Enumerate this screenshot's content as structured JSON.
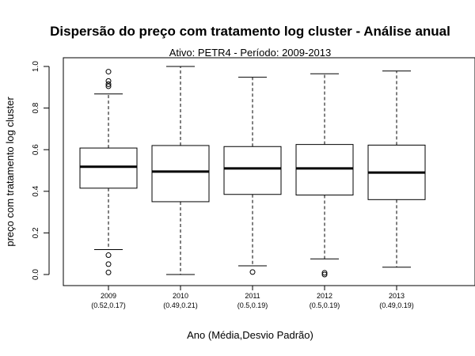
{
  "chart_data": {
    "type": "boxplot",
    "title": "Dispersão do  preço com tratamento log cluster  - Análise anual",
    "subtitle": "Ativo: PETR4 - Período: 2009-2013",
    "xlabel": "Ano (Média,Desvio Padrão)",
    "ylabel": "preço com tratamento log cluster",
    "ylim": [
      0,
      1
    ],
    "yticks": [
      "0.0",
      "0.2",
      "0.4",
      "0.6",
      "0.8",
      "1.0"
    ],
    "categories": [
      "2009",
      "2010",
      "2011",
      "2012",
      "2013"
    ],
    "category_stats": [
      "(0.52,0.17)",
      "(0.49,0.21)",
      "(0.5,0.19)",
      "(0.5,0.19)",
      "(0.49,0.19)"
    ],
    "boxes": [
      {
        "whisker_low": 0.12,
        "q1": 0.415,
        "median": 0.518,
        "q3": 0.608,
        "whisker_high": 0.868,
        "outliers": [
          0.975,
          0.93,
          0.915,
          0.905,
          0.093,
          0.05,
          0.01
        ]
      },
      {
        "whisker_low": 0.0,
        "q1": 0.35,
        "median": 0.495,
        "q3": 0.62,
        "whisker_high": 1.0,
        "outliers": []
      },
      {
        "whisker_low": 0.042,
        "q1": 0.385,
        "median": 0.51,
        "q3": 0.615,
        "whisker_high": 0.948,
        "outliers": [
          0.012
        ]
      },
      {
        "whisker_low": 0.075,
        "q1": 0.382,
        "median": 0.51,
        "q3": 0.625,
        "whisker_high": 0.965,
        "outliers": [
          0.008,
          0.0
        ]
      },
      {
        "whisker_low": 0.035,
        "q1": 0.36,
        "median": 0.49,
        "q3": 0.622,
        "whisker_high": 0.978,
        "outliers": []
      }
    ],
    "grid": false,
    "legend": "none"
  }
}
